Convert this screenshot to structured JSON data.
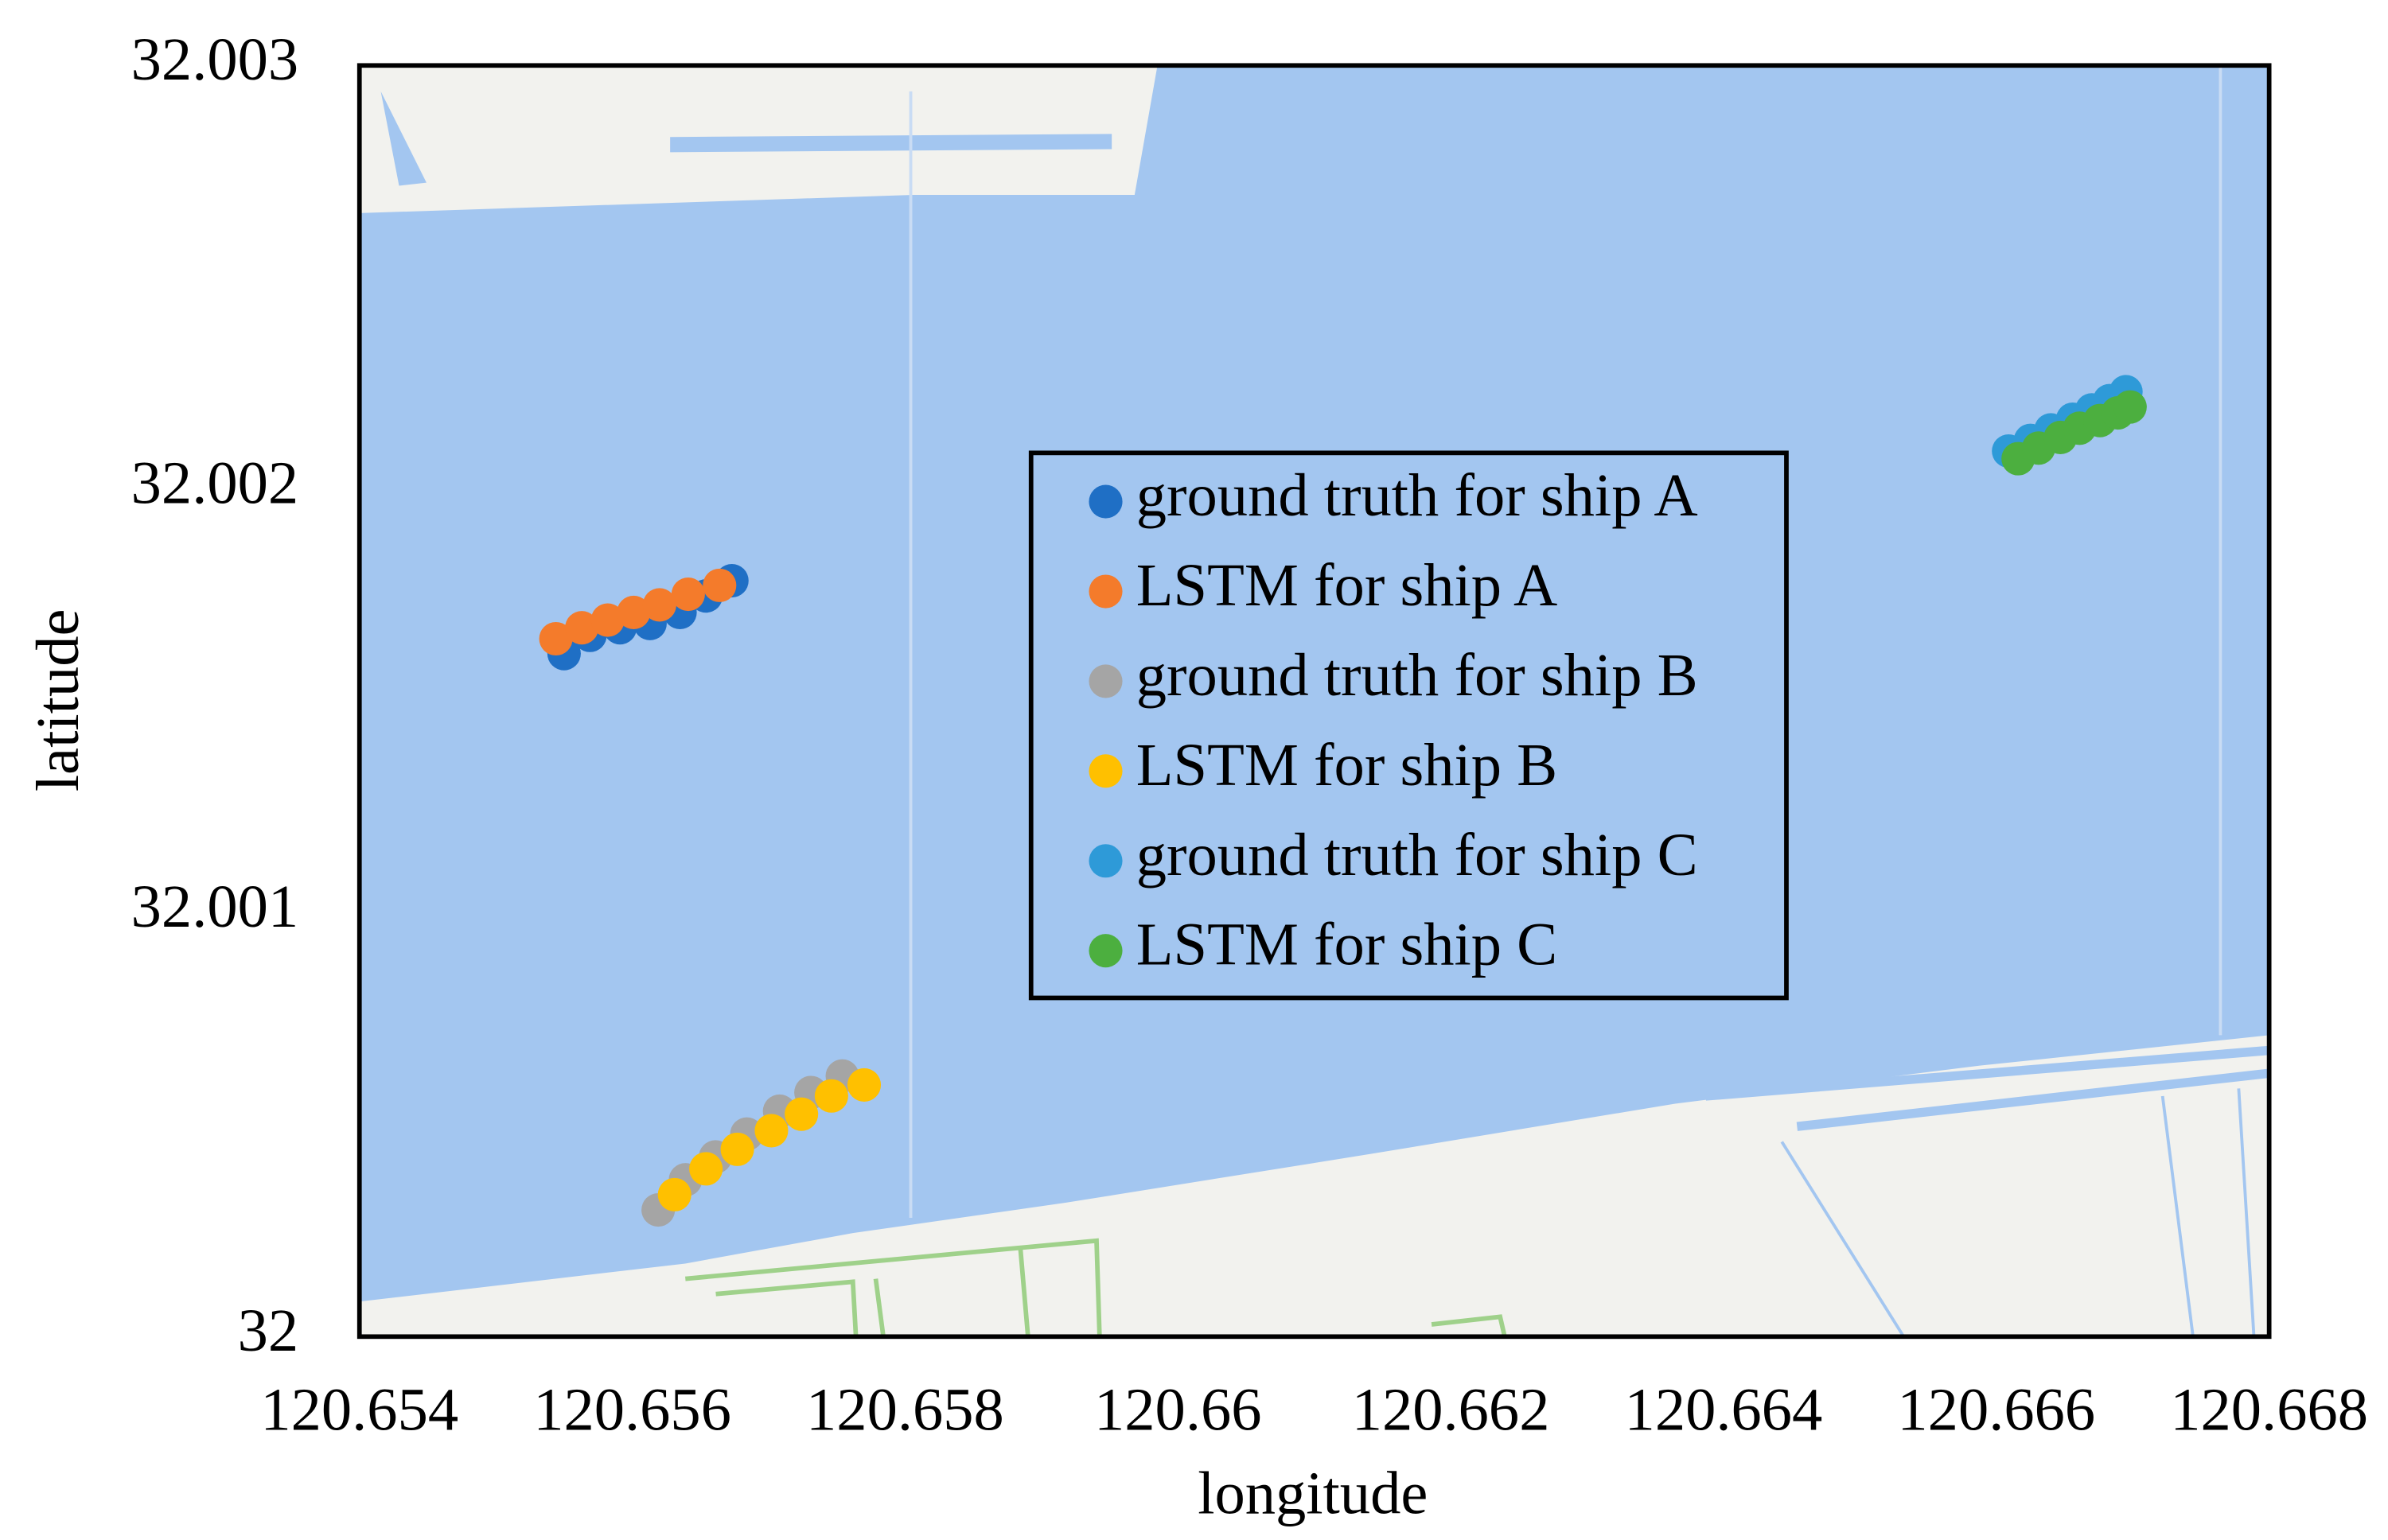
{
  "chart_data": {
    "type": "scatter",
    "x_label": "longitude",
    "y_label": "latitude",
    "xlim": [
      120.654,
      120.668
    ],
    "xticks": [
      120.654,
      120.656,
      120.658,
      120.66,
      120.662,
      120.664,
      120.666,
      120.668
    ],
    "ylim": [
      32,
      32.003
    ],
    "yticks": [
      32,
      32.001,
      32.002,
      32.003
    ],
    "legend": "center",
    "series": [
      {
        "name": "ground truth for ship A",
        "color": "#1f6fc5",
        "x": [
          120.6555,
          120.65569,
          120.65591,
          120.65613,
          120.65635,
          120.65654,
          120.65673
        ],
        "y": [
          32.001612,
          32.001655,
          32.001673,
          32.001683,
          32.001709,
          32.001748,
          32.001784
        ]
      },
      {
        "name": "LSTM for ship A",
        "color": "#f47b2b",
        "x": [
          120.65544,
          120.65563,
          120.65582,
          120.65601,
          120.6562,
          120.65641,
          120.65664
        ],
        "y": [
          32.001647,
          32.001673,
          32.001691,
          32.001709,
          32.001727,
          32.001752,
          32.001773
        ]
      },
      {
        "name": "ground truth for ship B",
        "color": "#a5a5a5",
        "x": [
          120.65619,
          120.65639,
          120.65661,
          120.65684,
          120.65708,
          120.65731,
          120.65754
        ],
        "y": [
          32.000299,
          32.00037,
          32.000424,
          32.000478,
          32.000532,
          32.000576,
          32.000615
        ]
      },
      {
        "name": "LSTM for ship B",
        "color": "#ffc000",
        "x": [
          120.65631,
          120.65654,
          120.65677,
          120.65702,
          120.65724,
          120.65746,
          120.6577
        ],
        "y": [
          32.000335,
          32.000396,
          32.000442,
          32.000486,
          32.000525,
          32.000568,
          32.000594
        ]
      },
      {
        "name": "ground truth for ship C",
        "color": "#2e9ad8",
        "x": [
          120.66609,
          120.66625,
          120.6664,
          120.66656,
          120.6667,
          120.66683,
          120.66695
        ],
        "y": [
          32.00209,
          32.002115,
          32.00214,
          32.002165,
          32.002187,
          32.002209,
          32.00223
        ]
      },
      {
        "name": "LSTM for ship C",
        "color": "#4caf3f",
        "x": [
          120.66616,
          120.66631,
          120.66647,
          120.66661,
          120.66676,
          120.66689,
          120.66698
        ],
        "y": [
          32.002072,
          32.002097,
          32.002122,
          32.002144,
          32.002162,
          32.00218,
          32.002194
        ]
      }
    ]
  }
}
